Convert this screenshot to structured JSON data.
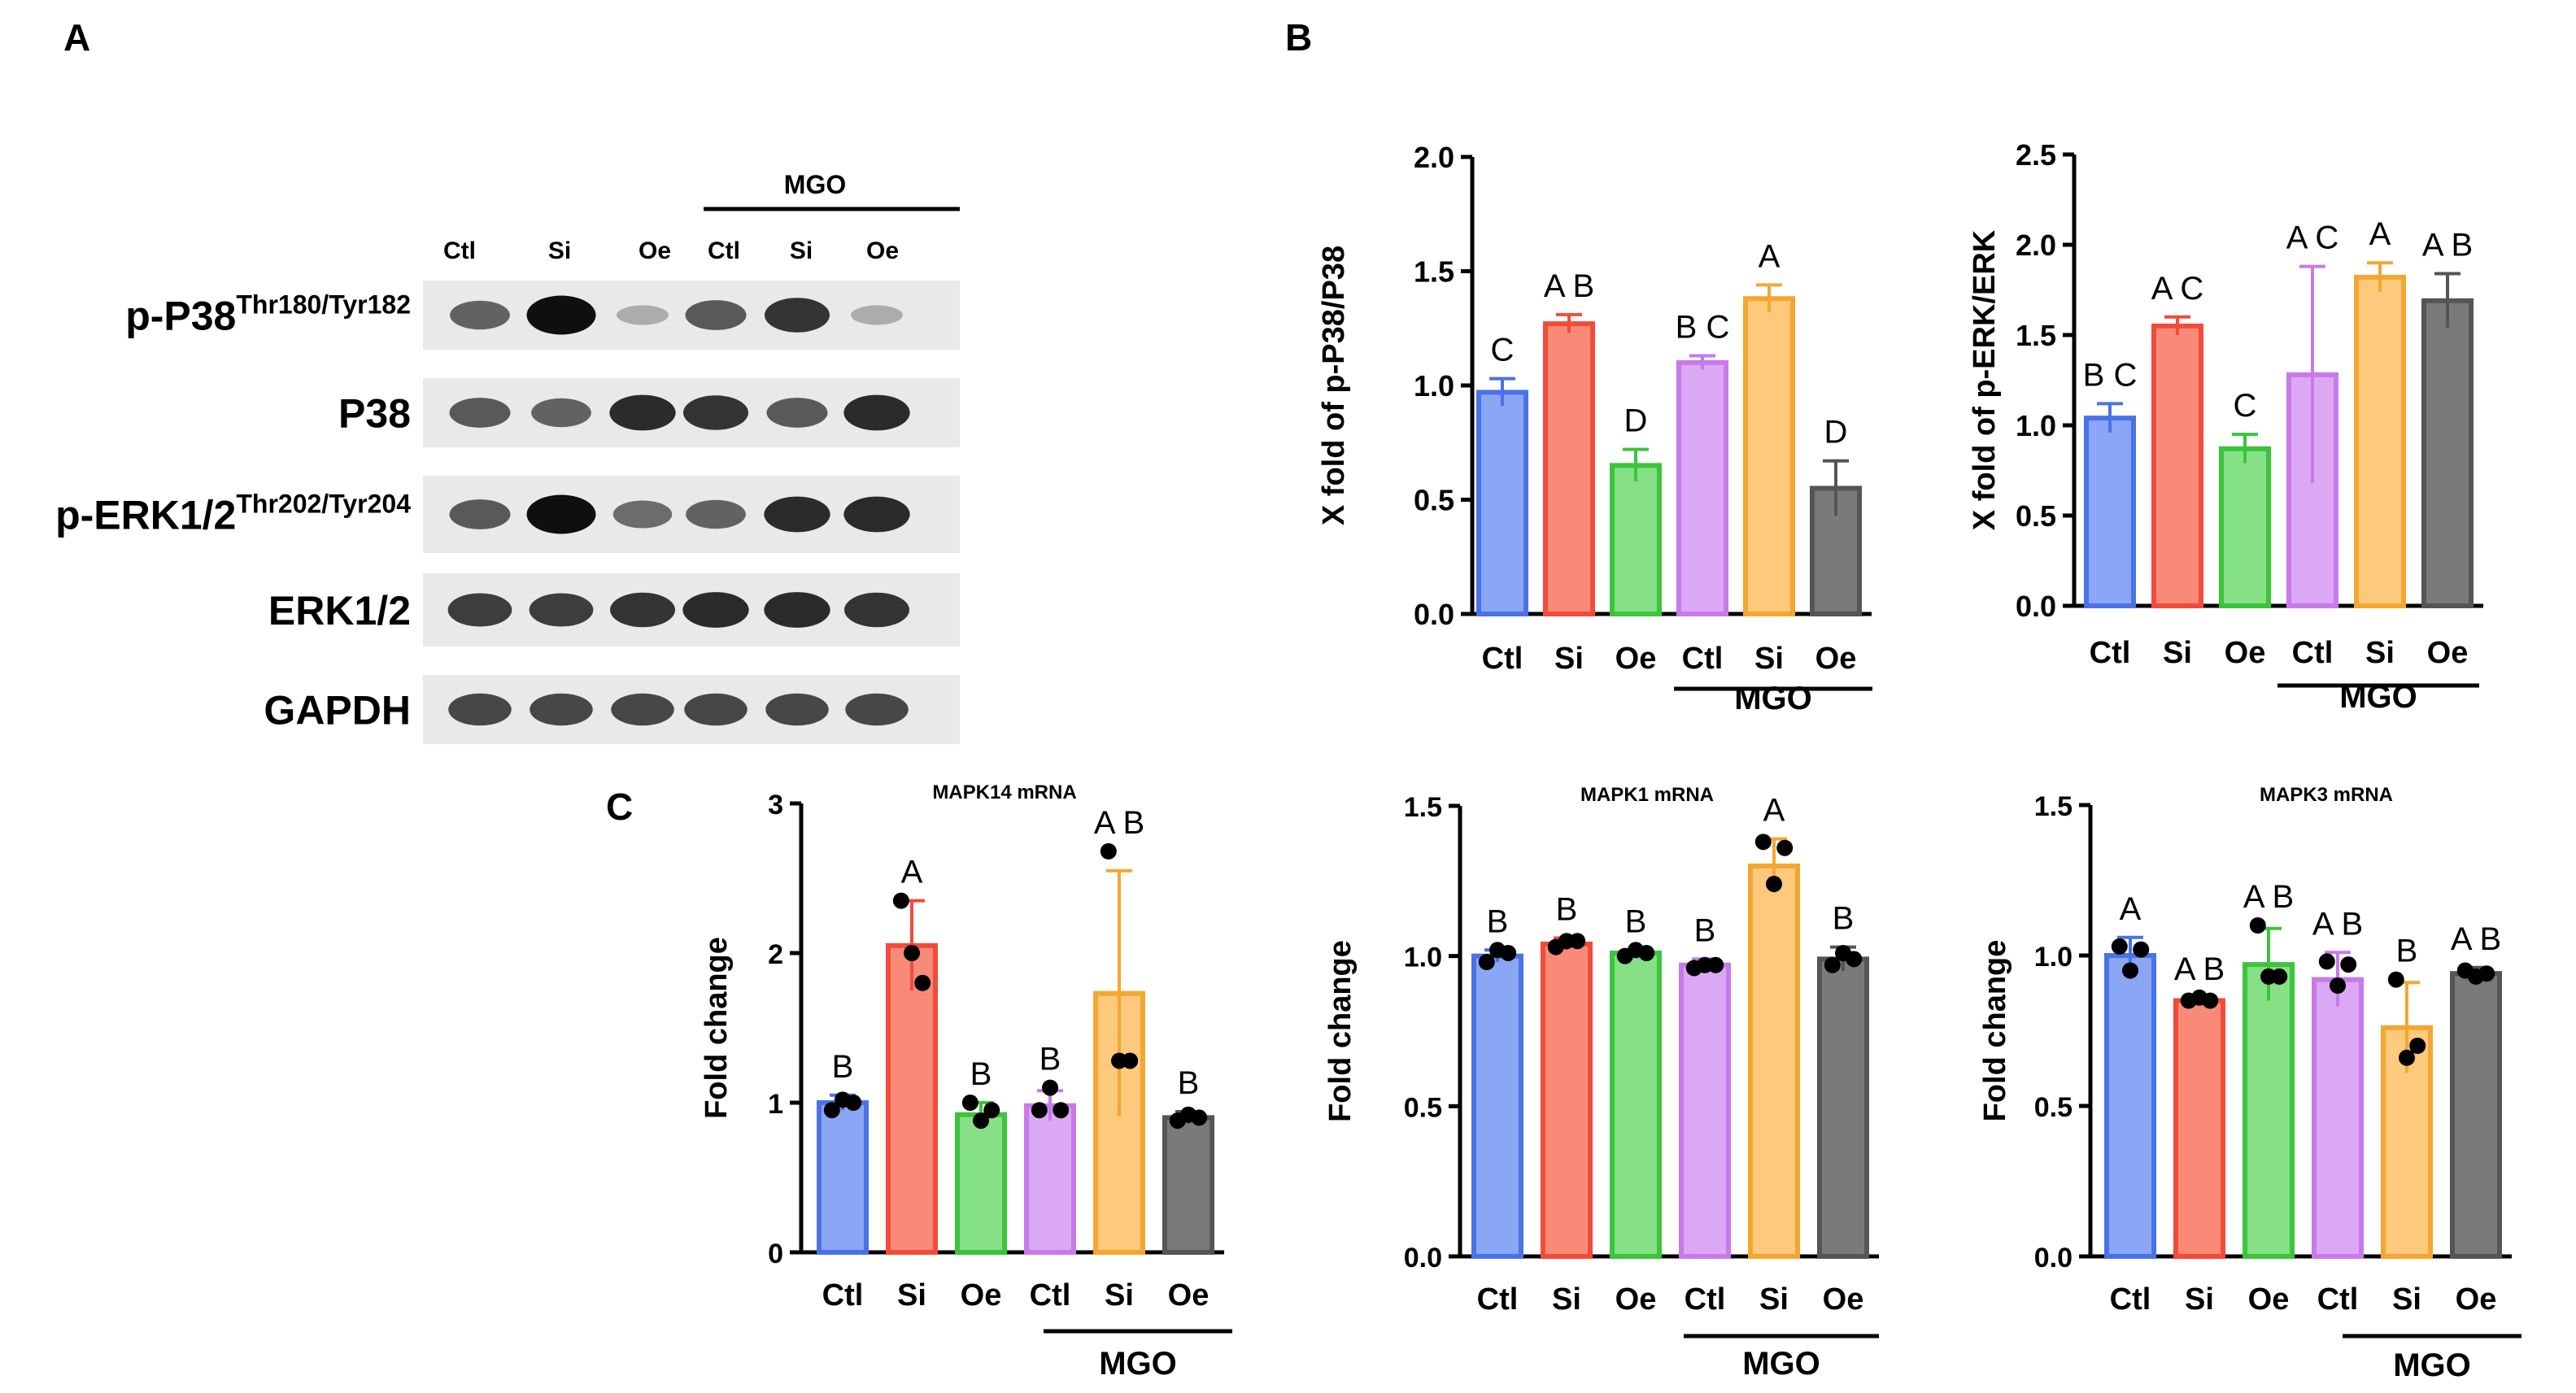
{
  "panel_labels": [
    "A",
    "B",
    "C"
  ],
  "blot": {
    "group_label": "MGO",
    "lanes": [
      "Ctl",
      "Si",
      "Oe",
      "Ctl",
      "Si",
      "Oe"
    ],
    "rows": [
      {
        "label": "p-P38",
        "sup": "Thr180/Tyr182",
        "intensity": [
          0.55,
          1.0,
          0.15,
          0.6,
          0.8,
          0.15
        ]
      },
      {
        "label": "P38",
        "sup": "",
        "intensity": [
          0.6,
          0.55,
          0.85,
          0.8,
          0.6,
          0.85
        ]
      },
      {
        "label": "p-ERK1/2",
        "sup": "Thr202/Tyr204",
        "intensity": [
          0.6,
          1.0,
          0.5,
          0.55,
          0.85,
          0.85
        ]
      },
      {
        "label": "ERK1/2",
        "sup": "",
        "intensity": [
          0.75,
          0.75,
          0.8,
          0.85,
          0.85,
          0.8
        ]
      },
      {
        "label": "GAPDH",
        "sup": "",
        "intensity": [
          0.7,
          0.7,
          0.7,
          0.7,
          0.7,
          0.7
        ]
      }
    ]
  },
  "colors": [
    "#4a72e8",
    "#f24b3a",
    "#3cc43c",
    "#c77ae8",
    "#f5a630",
    "#555555"
  ],
  "fills": [
    "#8aa6f5",
    "#f98a78",
    "#86e086",
    "#dba8f5",
    "#fcc97d",
    "#7a7a7a"
  ],
  "chart_data": [
    {
      "type": "bar",
      "panel": "B",
      "categories": [
        "Ctl",
        "Si",
        "Oe",
        "Ctl",
        "Si",
        "Oe"
      ],
      "group_label": "MGO",
      "title": "",
      "xlabel": "",
      "ylabel": "X fold of p-P38/P38",
      "ylim": [
        0,
        2.0
      ],
      "ticks": [
        "0.0",
        "0.5",
        "1.0",
        "1.5",
        "2.0"
      ],
      "values": [
        0.97,
        1.27,
        0.65,
        1.1,
        1.38,
        0.55
      ],
      "errors": [
        0.06,
        0.04,
        0.07,
        0.03,
        0.06,
        0.12
      ],
      "letters": [
        "C",
        "A B",
        "D",
        "B C",
        "A",
        "D"
      ],
      "points": []
    },
    {
      "type": "bar",
      "panel": "B",
      "categories": [
        "Ctl",
        "Si",
        "Oe",
        "Ctl",
        "Si",
        "Oe"
      ],
      "group_label": "MGO",
      "title": "",
      "xlabel": "",
      "ylabel": "X fold of p-ERK/ERK",
      "ylim": [
        0,
        2.5
      ],
      "ticks": [
        "0.0",
        "0.5",
        "1.0",
        "1.5",
        "2.0",
        "2.5"
      ],
      "values": [
        1.04,
        1.55,
        0.87,
        1.28,
        1.82,
        1.69
      ],
      "errors": [
        0.08,
        0.05,
        0.08,
        0.6,
        0.08,
        0.15
      ],
      "letters": [
        "B C",
        "A C",
        "C",
        "A C",
        "A",
        "A B"
      ],
      "points": []
    },
    {
      "type": "bar",
      "panel": "C",
      "categories": [
        "Ctl",
        "Si",
        "Oe",
        "Ctl",
        "Si",
        "Oe"
      ],
      "group_label": "MGO",
      "title": "MAPK14 mRNA",
      "xlabel": "",
      "ylabel": "Fold change",
      "ylim": [
        0,
        3
      ],
      "ticks": [
        "0",
        "1",
        "2",
        "3"
      ],
      "values": [
        1.0,
        2.05,
        0.92,
        0.98,
        1.73,
        0.9
      ],
      "errors": [
        0.05,
        0.3,
        0.08,
        0.1,
        0.82,
        0.04
      ],
      "letters": [
        "B",
        "A",
        "B",
        "B",
        "A B",
        "B"
      ],
      "points": [
        [
          0.95,
          1.02,
          1.0
        ],
        [
          2.35,
          2.0,
          1.8
        ],
        [
          1.0,
          0.88,
          0.95
        ],
        [
          0.95,
          1.1,
          0.95
        ],
        [
          2.68,
          1.28,
          1.28
        ],
        [
          0.88,
          0.92,
          0.9
        ]
      ]
    },
    {
      "type": "bar",
      "panel": "C",
      "categories": [
        "Ctl",
        "Si",
        "Oe",
        "Ctl",
        "Si",
        "Oe"
      ],
      "group_label": "MGO",
      "title": "MAPK1 mRNA",
      "xlabel": "",
      "ylabel": "Fold change",
      "ylim": [
        0,
        1.5
      ],
      "ticks": [
        "0.0",
        "0.5",
        "1.0",
        "1.5"
      ],
      "values": [
        1.0,
        1.04,
        1.01,
        0.97,
        1.3,
        0.99
      ],
      "errors": [
        0.02,
        0.02,
        0.01,
        0.02,
        0.09,
        0.04
      ],
      "letters": [
        "B",
        "B",
        "B",
        "B",
        "A",
        "B"
      ],
      "points": [
        [
          0.98,
          1.02,
          1.01
        ],
        [
          1.03,
          1.05,
          1.05
        ],
        [
          1.0,
          1.02,
          1.01
        ],
        [
          0.96,
          0.97,
          0.97
        ],
        [
          1.38,
          1.24,
          1.36
        ],
        [
          0.97,
          1.01,
          0.99
        ]
      ]
    },
    {
      "type": "bar",
      "panel": "C",
      "categories": [
        "Ctl",
        "Si",
        "Oe",
        "Ctl",
        "Si",
        "Oe"
      ],
      "group_label": "MGO",
      "title": "MAPK3 mRNA",
      "xlabel": "",
      "ylabel": "Fold change",
      "ylim": [
        0,
        1.5
      ],
      "ticks": [
        "0.0",
        "0.5",
        "1.0",
        "1.5"
      ],
      "values": [
        1.0,
        0.85,
        0.97,
        0.92,
        0.76,
        0.94
      ],
      "errors": [
        0.06,
        0.01,
        0.12,
        0.09,
        0.15,
        0.02
      ],
      "letters": [
        "A",
        "A B",
        "A B",
        "A B",
        "B",
        "A B"
      ],
      "points": [
        [
          1.03,
          0.95,
          1.02
        ],
        [
          0.85,
          0.86,
          0.85
        ],
        [
          1.1,
          0.93,
          0.93
        ],
        [
          0.98,
          0.9,
          0.97
        ],
        [
          0.92,
          0.66,
          0.7
        ],
        [
          0.95,
          0.93,
          0.94
        ]
      ]
    }
  ]
}
